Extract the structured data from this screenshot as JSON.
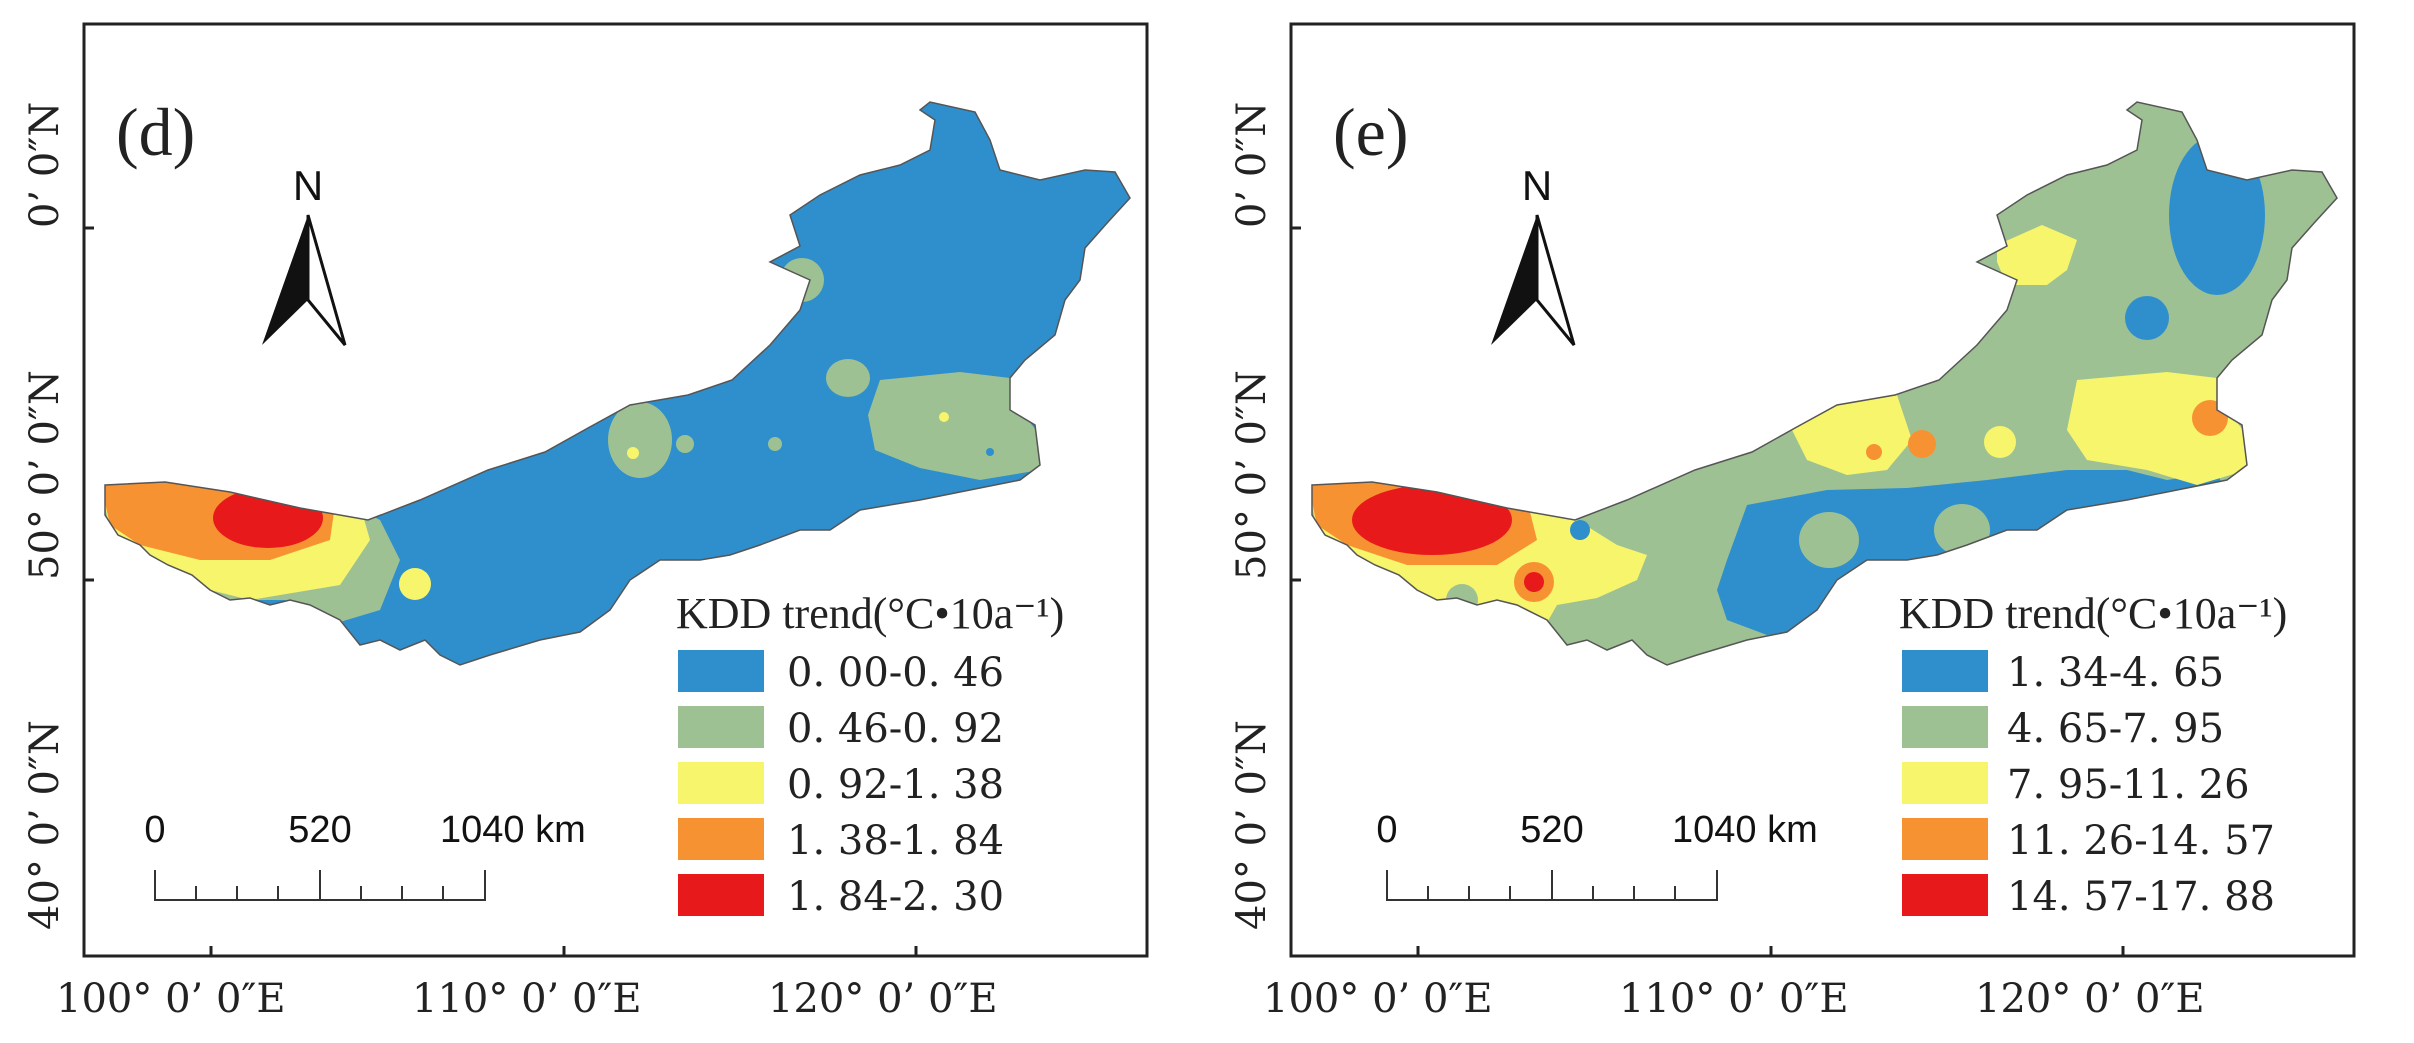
{
  "panels": [
    {
      "id": "d",
      "panel_label": "(d)",
      "north_label": "N",
      "lat_labels": [
        "0’ 0″N",
        "50°  0’ 0″N",
        "40°  0’ 0″N"
      ],
      "lon_labels": [
        "100°  0’ 0″E",
        "110°  0’ 0″E",
        "120°  0’ 0″E"
      ],
      "scale": {
        "zero": "0",
        "mid": "520",
        "end": "1040 km"
      },
      "legend": {
        "title": "KDD trend(°C•10a⁻¹)",
        "items": [
          {
            "label": "0. 00-0. 46",
            "color": "#2e8fcc"
          },
          {
            "label": "0. 46-0. 92",
            "color": "#9ec194"
          },
          {
            "label": "0. 92-1. 38",
            "color": "#f7f56c"
          },
          {
            "label": "1. 38-1. 84",
            "color": "#f79233"
          },
          {
            "label": "1. 84-2. 30",
            "color": "#e8191a"
          }
        ]
      }
    },
    {
      "id": "e",
      "panel_label": "(e)",
      "north_label": "N",
      "lat_labels": [
        "0’ 0″N",
        "50°  0’ 0″N",
        "40°  0’ 0″N"
      ],
      "lon_labels": [
        "100°  0’ 0″E",
        "110°  0’ 0″E",
        "120°  0’ 0″E"
      ],
      "scale": {
        "zero": "0",
        "mid": "520",
        "end": "1040 km"
      },
      "legend": {
        "title": "KDD trend(°C•10a⁻¹)",
        "items": [
          {
            "label": "1. 34-4. 65",
            "color": "#2e8fcc"
          },
          {
            "label": "4. 65-7. 95",
            "color": "#9ec194"
          },
          {
            "label": "7. 95-11. 26",
            "color": "#f7f56c"
          },
          {
            "label": "11. 26-14. 57",
            "color": "#f79233"
          },
          {
            "label": "14. 57-17. 88",
            "color": "#e8191a"
          }
        ]
      }
    }
  ]
}
